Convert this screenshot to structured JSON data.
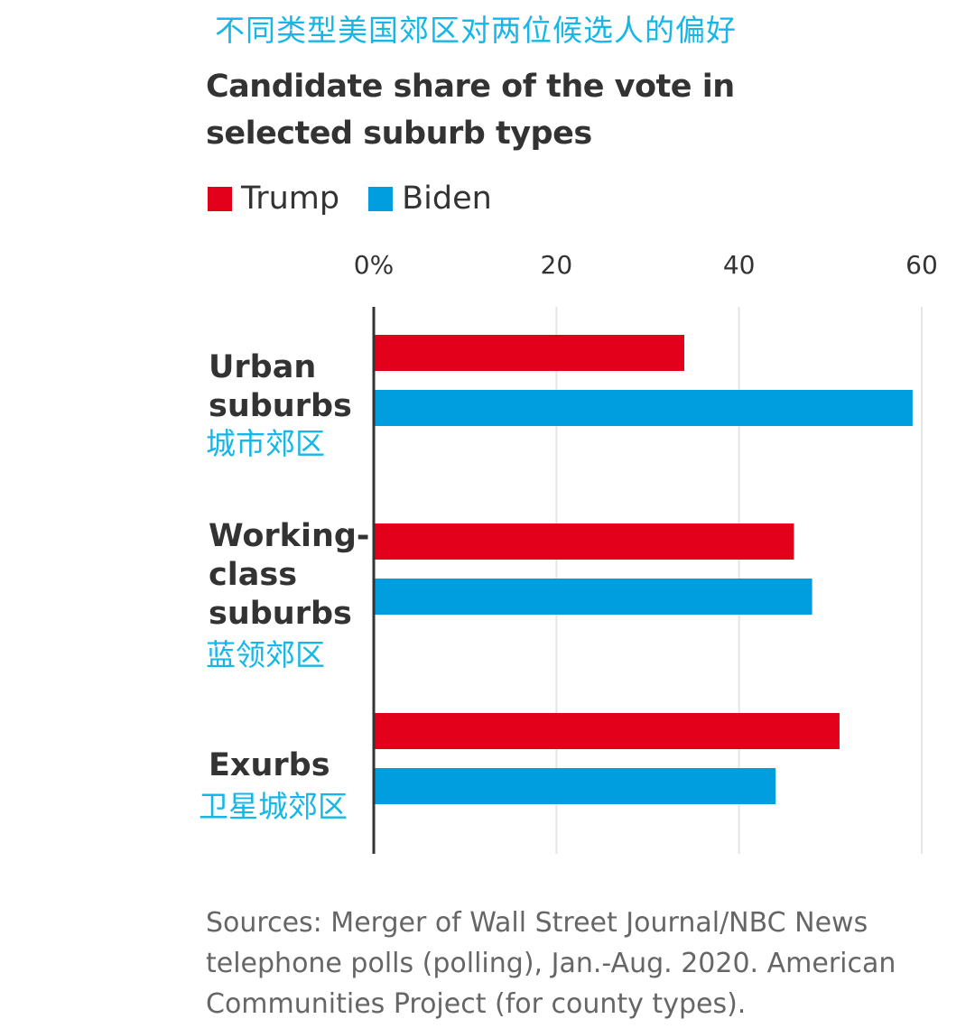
{
  "cn_title": "不同类型美国郊区对两位候选人的偏好",
  "colors": {
    "trump": "#e2001a",
    "biden": "#009ede",
    "axis": "#333333",
    "grid": "#e5e5e5",
    "cn_text": "#15b6e8"
  },
  "chart_data": {
    "type": "bar",
    "orientation": "horizontal",
    "title": "Candidate share of the vote in selected suburb types",
    "categories": [
      "Urban suburbs",
      "Working-class suburbs",
      "Exurbs"
    ],
    "category_labels": [
      "Urban\nsuburbs",
      "Working-\nclass\nsuburbs",
      "Exurbs"
    ],
    "category_labels_cn": [
      "城市郊区",
      "蓝领郊区",
      "卫星城郊区"
    ],
    "series": [
      {
        "name": "Trump",
        "color": "#e2001a",
        "values": [
          34,
          46,
          51
        ]
      },
      {
        "name": "Biden",
        "color": "#009ede",
        "values": [
          59,
          48,
          44
        ]
      }
    ],
    "x_ticks": [
      0,
      20,
      40,
      60
    ],
    "x_tick_labels": [
      "0%",
      "20",
      "40",
      "60"
    ],
    "xlim": [
      0,
      60
    ],
    "grid": true,
    "legend_position": "top-left"
  },
  "source": "Sources: Merger of Wall Street Journal/NBC News telephone polls (polling), Jan.-Aug. 2020. American Communities Project (for county types)."
}
